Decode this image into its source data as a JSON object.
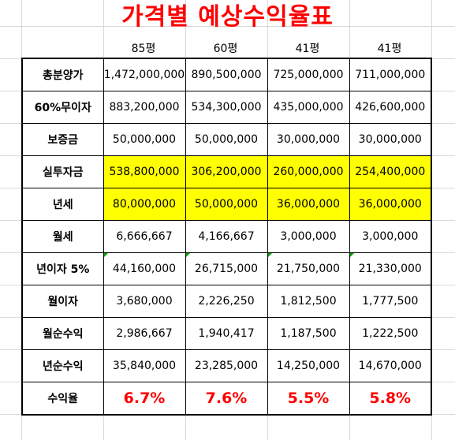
{
  "title": "가격별 예상수익율표",
  "columns": [
    "85평",
    "60평",
    "41평",
    "41평"
  ],
  "rows": [
    {
      "label": "총분양가",
      "values": [
        "1,472,000,000",
        "890,500,000",
        "725,000,000",
        "711,000,000"
      ],
      "highlight": false
    },
    {
      "label": "60%무이자",
      "values": [
        "883,200,000",
        "534,300,000",
        "435,000,000",
        "426,600,000"
      ],
      "highlight": false
    },
    {
      "label": "보증금",
      "values": [
        "50,000,000",
        "50,000,000",
        "30,000,000",
        "30,000,000"
      ],
      "highlight": false
    },
    {
      "label": "실투자금",
      "values": [
        "538,800,000",
        "306,200,000",
        "260,000,000",
        "254,400,000"
      ],
      "highlight": true
    },
    {
      "label": "년세",
      "values": [
        "80,000,000",
        "50,000,000",
        "36,000,000",
        "36,000,000"
      ],
      "highlight": true
    },
    {
      "label": "월세",
      "values": [
        "6,666,667",
        "4,166,667",
        "3,000,000",
        "3,000,000"
      ],
      "highlight": false
    },
    {
      "label": "년이자 5%",
      "values": [
        "44,160,000",
        "26,715,000",
        "21,750,000",
        "21,330,000"
      ],
      "highlight": false
    },
    {
      "label": "월이자",
      "values": [
        "3,680,000",
        "2,226,250",
        "1,812,500",
        "1,777,500"
      ],
      "highlight": false
    },
    {
      "label": "월순수익",
      "values": [
        "2,986,667",
        "1,940,417",
        "1,187,500",
        "1,222,500"
      ],
      "highlight": false
    },
    {
      "label": "년순수익",
      "values": [
        "35,840,000",
        "23,285,000",
        "14,250,000",
        "14,670,000"
      ],
      "highlight": false
    },
    {
      "label": "수익율",
      "values": [
        "6.7%",
        "7.6%",
        "5.5%",
        "5.8%"
      ],
      "highlight": false
    }
  ],
  "colors": {
    "title": "#ff0000",
    "highlight": "#ffff00",
    "rate": "#ff0000"
  }
}
